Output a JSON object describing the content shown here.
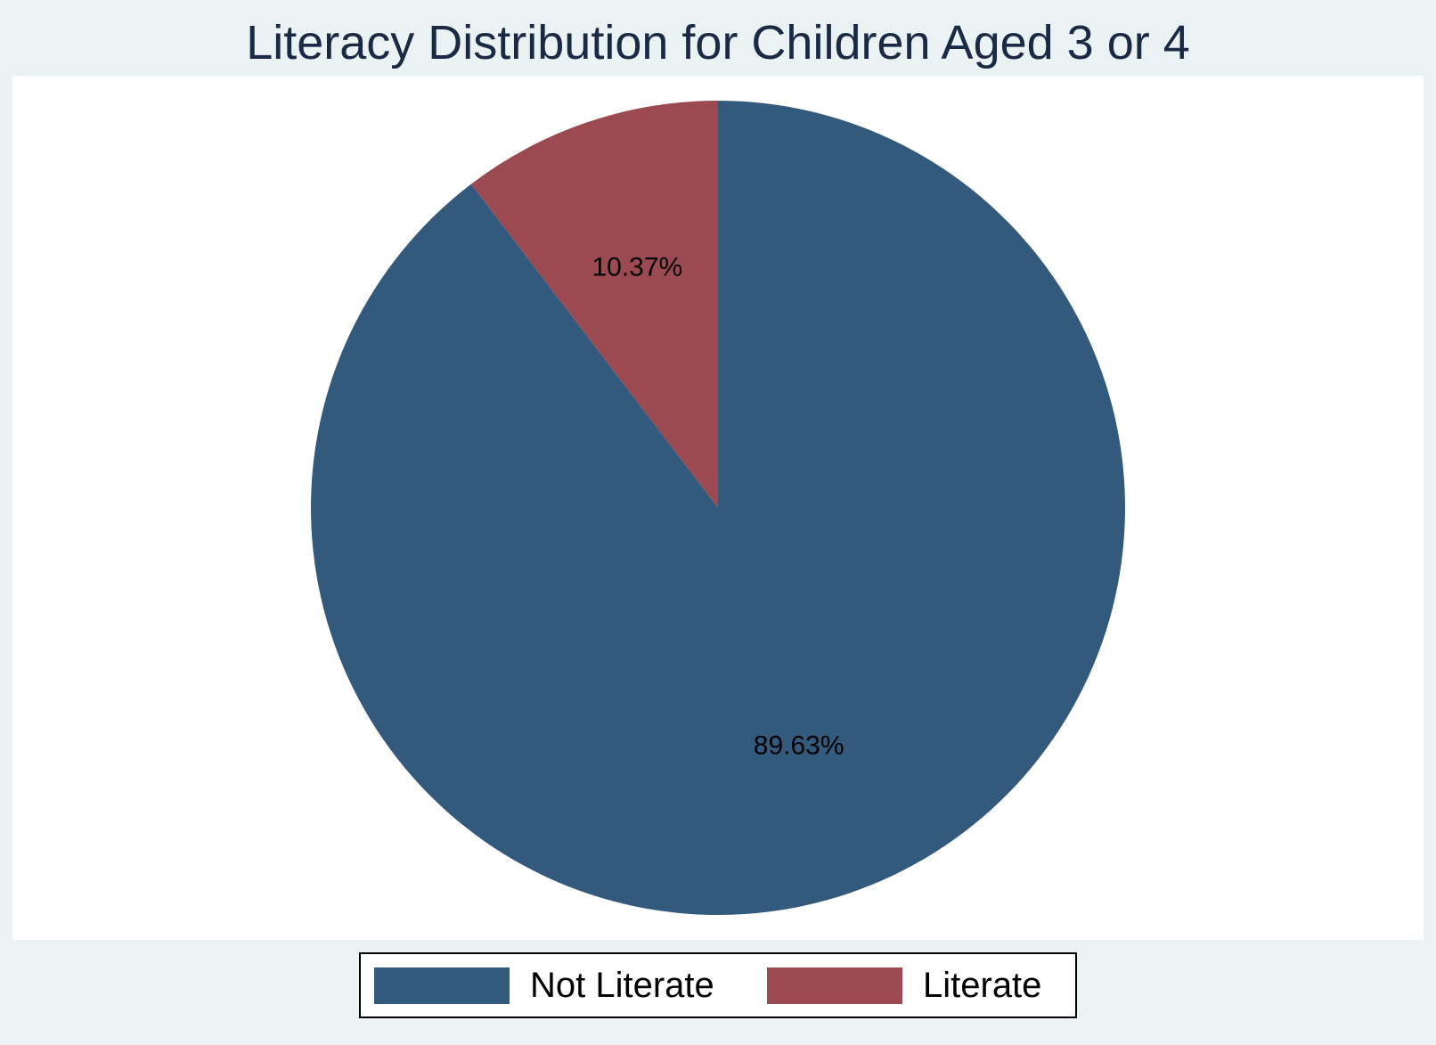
{
  "title": "Literacy Distribution for Children Aged 3 or 4",
  "chart_data": {
    "type": "pie",
    "title": "Literacy Distribution for Children Aged 3 or 4",
    "slices": [
      {
        "name": "Not Literate",
        "value": 89.63,
        "label": "89.63%",
        "color": "#33597d"
      },
      {
        "name": "Literate",
        "value": 10.37,
        "label": "10.37%",
        "color": "#9a4a50"
      }
    ],
    "start": "top",
    "direction": "clockwise",
    "legend_position": "bottom"
  },
  "legend": {
    "items": [
      {
        "label": "Not Literate",
        "color": "#33597d"
      },
      {
        "label": "Literate",
        "color": "#9a4a50"
      }
    ]
  }
}
